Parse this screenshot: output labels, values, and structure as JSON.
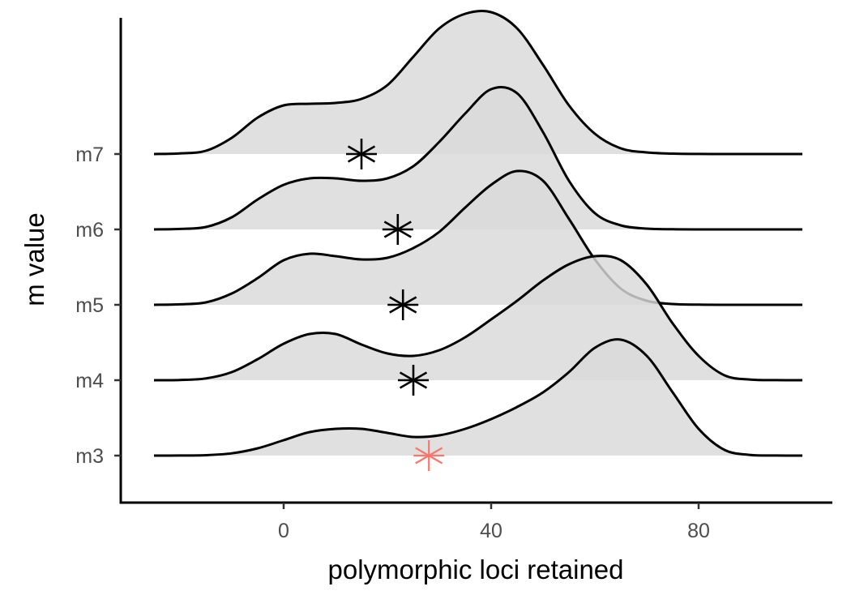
{
  "chart_data": {
    "type": "ridgeline",
    "xlabel": "polymorphic loci retained",
    "ylabel": "m value",
    "xlim": [
      -25,
      100
    ],
    "x_ticks": [
      0,
      40,
      80
    ],
    "x_tick_labels": [
      "0",
      "40",
      "80"
    ],
    "categories": [
      "m3",
      "m4",
      "m5",
      "m6",
      "m7"
    ],
    "grid": false,
    "legend": "none",
    "colors": {
      "fill": "#d9d9d9",
      "line": "#000000",
      "marker": "#000000",
      "marker_highlight": "#f8766d"
    },
    "series": [
      {
        "name": "m3",
        "marker_x": 28,
        "highlight": true,
        "x": [
          -25,
          -20,
          -15,
          -10,
          -5,
          0,
          5,
          10,
          15,
          20,
          25,
          30,
          35,
          40,
          45,
          50,
          55,
          60,
          65,
          70,
          75,
          80,
          85,
          90,
          95,
          100
        ],
        "density": [
          0.0,
          0.001,
          0.005,
          0.028,
          0.09,
          0.19,
          0.29,
          0.33,
          0.33,
          0.28,
          0.23,
          0.25,
          0.33,
          0.45,
          0.6,
          0.78,
          1.03,
          1.33,
          1.43,
          1.23,
          0.78,
          0.33,
          0.07,
          0.008,
          0.001,
          0.0
        ]
      },
      {
        "name": "m4",
        "marker_x": 25,
        "highlight": false,
        "x": [
          -25,
          -20,
          -15,
          -10,
          -5,
          0,
          5,
          10,
          15,
          20,
          25,
          30,
          35,
          40,
          45,
          50,
          55,
          60,
          65,
          70,
          75,
          80,
          85,
          90,
          95,
          100
        ],
        "density": [
          0.0,
          0.003,
          0.022,
          0.1,
          0.26,
          0.45,
          0.57,
          0.57,
          0.44,
          0.33,
          0.3,
          0.37,
          0.53,
          0.75,
          0.98,
          1.23,
          1.43,
          1.53,
          1.48,
          1.18,
          0.7,
          0.3,
          0.06,
          0.008,
          0.001,
          0.0
        ]
      },
      {
        "name": "m5",
        "marker_x": 23,
        "highlight": false,
        "x": [
          -25,
          -20,
          -15,
          -10,
          -5,
          0,
          5,
          10,
          15,
          20,
          25,
          30,
          35,
          40,
          45,
          50,
          55,
          60,
          65,
          70,
          75,
          80,
          85,
          90,
          95,
          100
        ],
        "density": [
          0.0,
          0.006,
          0.03,
          0.14,
          0.33,
          0.55,
          0.63,
          0.6,
          0.56,
          0.58,
          0.7,
          0.9,
          1.2,
          1.48,
          1.65,
          1.53,
          1.06,
          0.56,
          0.2,
          0.05,
          0.01,
          0.002,
          0.0,
          0.0,
          0.0,
          0.0
        ]
      },
      {
        "name": "m6",
        "marker_x": 22,
        "highlight": false,
        "x": [
          -25,
          -20,
          -15,
          -10,
          -5,
          0,
          5,
          10,
          15,
          20,
          25,
          30,
          35,
          40,
          45,
          50,
          55,
          60,
          65,
          70,
          75,
          80,
          85,
          90,
          95,
          100
        ],
        "density": [
          0.0,
          0.006,
          0.03,
          0.15,
          0.37,
          0.55,
          0.63,
          0.63,
          0.6,
          0.63,
          0.78,
          1.08,
          1.43,
          1.73,
          1.68,
          1.2,
          0.6,
          0.2,
          0.05,
          0.01,
          0.002,
          0.0,
          0.0,
          0.0,
          0.0,
          0.0
        ]
      },
      {
        "name": "m7",
        "marker_x": 15,
        "highlight": false,
        "x": [
          -25,
          -20,
          -15,
          -10,
          -5,
          0,
          5,
          10,
          15,
          20,
          25,
          30,
          35,
          40,
          45,
          50,
          55,
          60,
          65,
          70,
          75,
          80,
          85,
          90,
          95,
          100
        ],
        "density": [
          0.0,
          0.008,
          0.04,
          0.2,
          0.45,
          0.6,
          0.62,
          0.63,
          0.68,
          0.85,
          1.2,
          1.55,
          1.73,
          1.75,
          1.55,
          1.1,
          0.6,
          0.25,
          0.07,
          0.02,
          0.005,
          0.001,
          0.0,
          0.0,
          0.0,
          0.0
        ]
      }
    ]
  }
}
